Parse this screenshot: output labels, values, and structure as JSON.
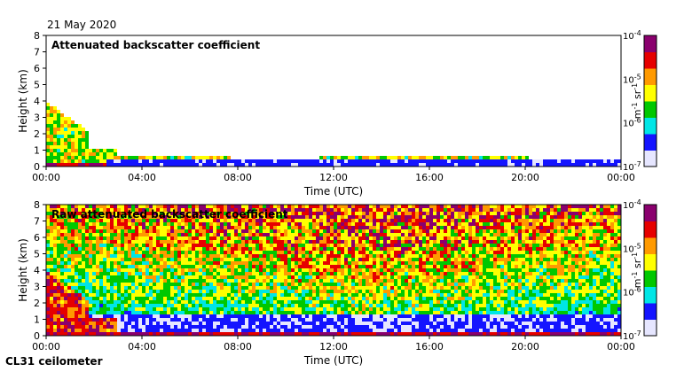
{
  "date": "21 May 2020",
  "instrument": "CL31 ceilometer",
  "colors": {
    "purple": "#8a006e",
    "red": "#e60000",
    "orange": "#ff9a00",
    "yellow": "#ffff00",
    "green": "#00c800",
    "cyan": "#00e6e6",
    "blue": "#1414ff",
    "pale": "#e6e6ff"
  },
  "chart_data": [
    {
      "type": "heatmap",
      "title": "Attenuated backscatter coefficient",
      "xlabel": "Time (UTC)",
      "ylabel": "Height (km)",
      "x_ticks": [
        "00:00",
        "04:00",
        "08:00",
        "12:00",
        "16:00",
        "20:00",
        "00:00"
      ],
      "y_ticks": [
        "0",
        "1",
        "2",
        "3",
        "4",
        "5",
        "6",
        "7",
        "8"
      ],
      "xlim_hours": [
        0,
        24
      ],
      "ylim_km": [
        0,
        8
      ],
      "colorbar": {
        "label_base": "m",
        "label_exp1": "-1",
        "label_mid": " sr",
        "label_exp2": "-1",
        "ticks": [
          {
            "base": "10",
            "exp": "-4"
          },
          {
            "base": "10",
            "exp": "-5"
          },
          {
            "base": "10",
            "exp": "-6"
          },
          {
            "base": "10",
            "exp": "-7"
          }
        ],
        "range_log10": [
          -7,
          -4
        ]
      }
    },
    {
      "type": "heatmap",
      "title": "Raw attenuated backscatter coefficient",
      "xlabel": "Time (UTC)",
      "ylabel": "Height (km)",
      "x_ticks": [
        "00:00",
        "04:00",
        "08:00",
        "12:00",
        "16:00",
        "20:00",
        "00:00"
      ],
      "y_ticks": [
        "0",
        "1",
        "2",
        "3",
        "4",
        "5",
        "6",
        "7",
        "8"
      ],
      "xlim_hours": [
        0,
        24
      ],
      "ylim_km": [
        0,
        8
      ],
      "colorbar": {
        "label_base": "m",
        "label_exp1": "-1",
        "label_mid": " sr",
        "label_exp2": "-1",
        "ticks": [
          {
            "base": "10",
            "exp": "-4"
          },
          {
            "base": "10",
            "exp": "-5"
          },
          {
            "base": "10",
            "exp": "-6"
          },
          {
            "base": "10",
            "exp": "-7"
          }
        ],
        "range_log10": [
          -7,
          -4
        ]
      }
    }
  ]
}
